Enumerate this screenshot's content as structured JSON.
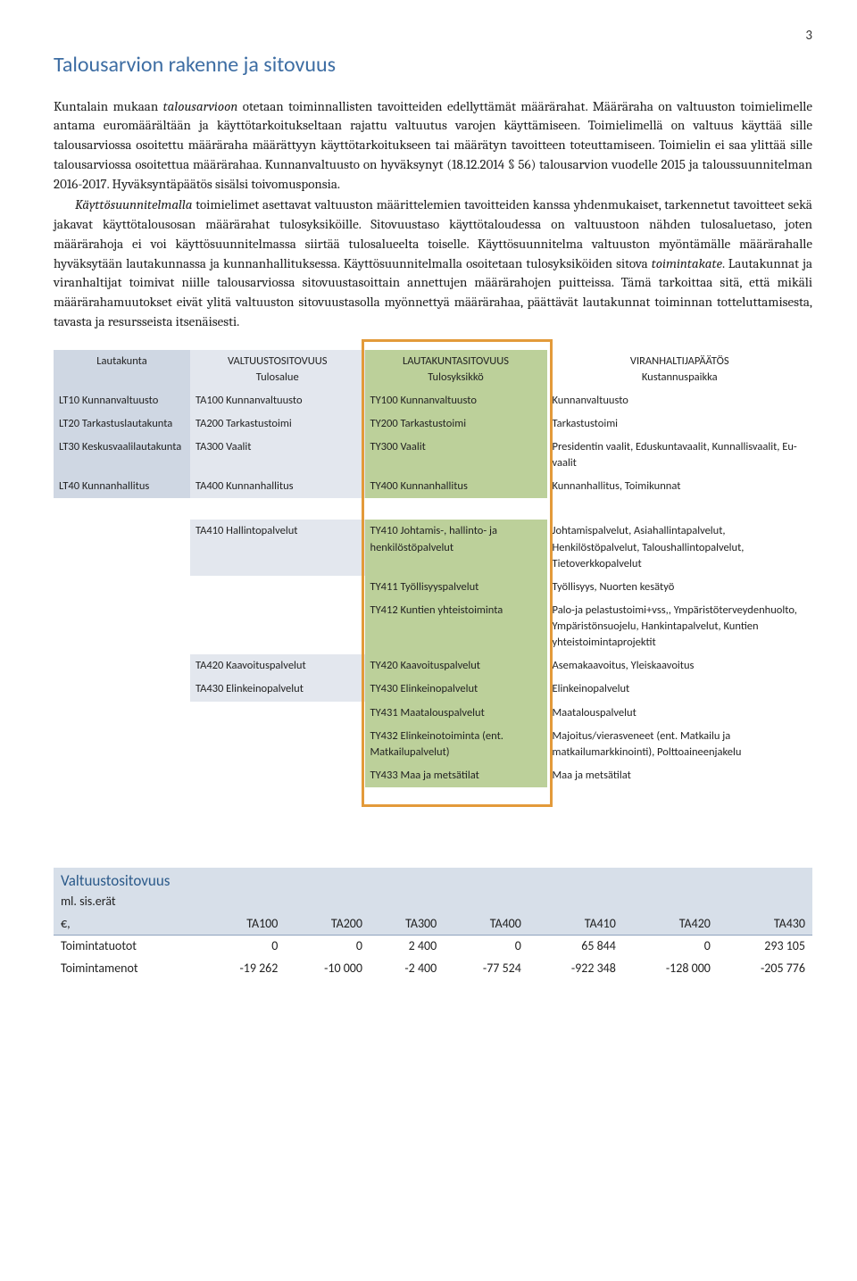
{
  "page_number": "3",
  "heading": "Talousarvion rakenne ja sitovuus",
  "heading_color": "#3d6da3",
  "paragraphs": {
    "p1a": "Kuntalain mukaan ",
    "p1b": "talousarvioon",
    "p1c": " otetaan toiminnallisten tavoitteiden edellyttämät määrärahat. Määräraha on valtuuston toimielimelle antama euromäärältään ja käyttötarkoitukseltaan rajattu valtuutus varojen käyttämiseen. Toimielimellä on valtuus käyttää sille talousarviossa osoitettu määräraha määrättyyn käyttötarkoitukseen tai määrätyn tavoitteen toteuttamiseen. Toimielin ei saa ylittää sille talousarviossa osoitettua määrärahaa. Kunnanvaltuusto on hyväksynyt (18.12.2014 § 56) talousarvion vuodelle 2015 ja taloussuunnitelman 2016-2017. Hyväksyntäpäätös sisälsi toivomusponsia.",
    "p2a": "Käyttösuunnitelmalla",
    "p2b": " toimielimet asettavat valtuuston määrittelemien tavoitteiden kanssa yhdenmukaiset, tarkennetut tavoitteet sekä jakavat käyttötalousosan määrärahat tulosyksiköille. Sitovuustaso käyttötaloudessa on valtuustoon nähden tulosaluetaso, joten määrärahoja ei voi käyttösuunnitelmassa siirtää tulosalueelta toiselle. Käyttösuunnitelma valtuuston myöntämälle määrärahalle hyväksytään lautakunnassa ja kunnanhallituksessa. Käyttösuunnitelmalla osoitetaan tulosyksiköiden sitova ",
    "p2c": "toimintakate",
    "p2d": ". Lautakunnat ja viranhaltijat toimivat niille talousarviossa sitovuustasoittain annettujen määrärahojen puitteissa. Tämä tarkoittaa sitä, että mikäli määrärahamuutokset eivät ylitä valtuuston sitovuustasolla myönnettyä määrärahaa, päättävät lautakunnat toiminnan totteluttamisesta, tavasta ja resursseista itsenäisesti."
  },
  "table1": {
    "headers": {
      "c0": {
        "top": "",
        "sub": "Lautakunta"
      },
      "c1": {
        "top": "VALTUUSTOSITOVUUS",
        "sub": "Tulosalue"
      },
      "c2": {
        "top": "LAUTAKUNTASITOVUUS",
        "sub": "Tulosyksikkö"
      },
      "c3": {
        "top": "VIRANHALTIJAPÄÄTÖS",
        "sub": "Kustannuspaikka"
      }
    },
    "rows_upper": [
      {
        "c0": "LT10 Kunnanvaltuusto",
        "c1": "TA100 Kunnanvaltuusto",
        "c2": "TY100 Kunnanvaltuusto",
        "c3": "Kunnanvaltuusto"
      },
      {
        "c0": "LT20 Tarkastuslautakunta",
        "c1": "TA200 Tarkastustoimi",
        "c2": "TY200 Tarkastustoimi",
        "c3": "Tarkastustoimi"
      },
      {
        "c0": "LT30 Keskusvaalilautakunta",
        "c1": "TA300 Vaalit",
        "c2": "TY300 Vaalit",
        "c3": "Presidentin vaalit, Eduskuntavaalit, Kunnallisvaalit, Eu-vaalit"
      },
      {
        "c0": "LT40 Kunnanhallitus",
        "c1": "TA400 Kunnanhallitus",
        "c2": "TY400 Kunnanhallitus",
        "c3": "Kunnanhallitus, Toimikunnat"
      }
    ],
    "rows_lower": [
      {
        "c0": "",
        "c1": "TA410 Hallintopalvelut",
        "c2": "TY410 Johtamis-, hallinto- ja henkilöstöpalvelut",
        "c3": "Johtamispalvelut, Asiahallintapalvelut, Henkilöstöpalvelut, Taloushallintopalvelut, Tietoverkkopalvelut"
      },
      {
        "c0": "",
        "c1": "",
        "c2": "TY411 Työllisyyspalvelut",
        "c3": "Työllisyys, Nuorten kesätyö"
      },
      {
        "c0": "",
        "c1": "",
        "c2": "TY412 Kuntien yhteistoiminta",
        "c3": "Palo-ja pelastustoimi+vss,, Ympäristöterveydenhuolto, Ympäristönsuojelu, Hankintapalvelut, Kuntien yhteistoimintaprojektit"
      },
      {
        "c0": "",
        "c1": "TA420 Kaavoituspalvelut",
        "c2": "TY420 Kaavoituspalvelut",
        "c3": "Asemakaavoitus, Yleiskaavoitus"
      },
      {
        "c0": "",
        "c1": "TA430 Elinkeinopalvelut",
        "c2": "TY430 Elinkeinopalvelut",
        "c3": "Elinkeinopalvelut"
      },
      {
        "c0": "",
        "c1": "",
        "c2": "TY431 Maatalouspalvelut",
        "c3": "Maatalouspalvelut"
      },
      {
        "c0": "",
        "c1": "",
        "c2": "TY432 Elinkeinotoiminta (ent. Matkailupalvelut)",
        "c3": "Majoitus/vierasveneet (ent. Matkailu ja matkailumarkkinointi), Polttoaineenjakelu"
      },
      {
        "c0": "",
        "c1": "",
        "c2": "TY433 Maa ja metsätilat",
        "c3": "Maa ja metsätilat"
      }
    ]
  },
  "table2": {
    "title": "Valtuustositovuus",
    "subtitle": "ml. sis.erät",
    "col0": "€,",
    "cols": [
      "TA100",
      "TA200",
      "TA300",
      "TA400",
      "TA410",
      "TA420",
      "TA430"
    ],
    "rows": [
      {
        "label": "Toimintatuotot",
        "v": [
          "0",
          "0",
          "2 400",
          "0",
          "65 844",
          "0",
          "293 105"
        ]
      },
      {
        "label": "Toimintamenot",
        "v": [
          "-19 262",
          "-10 000",
          "-2 400",
          "-77 524",
          "-922 348",
          "-128 000",
          "-205 776"
        ]
      }
    ]
  },
  "colors": {
    "heading": "#3d6da3",
    "col0_bg": "#cfd7e3",
    "col1_bg": "#e3e7ee",
    "col2_bg": "#bcd09a",
    "orange": "#e39a3a",
    "t2_header_bg": "#d7dfe9",
    "t2_border": "#8fa3be",
    "t2_title": "#2b5a8a"
  }
}
